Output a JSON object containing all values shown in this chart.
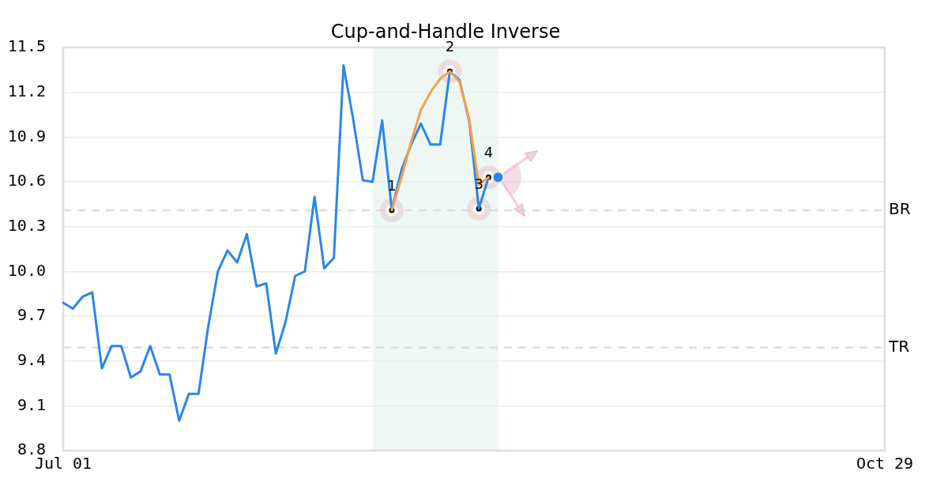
{
  "chart_data": {
    "type": "line",
    "title": "Cup-and-Handle Inverse",
    "categories": [
      "Jul 01",
      null,
      null,
      null,
      null,
      null,
      null,
      null,
      null,
      null,
      null,
      null,
      null,
      null,
      null,
      null,
      null,
      null,
      null,
      null,
      null,
      null,
      null,
      null,
      null,
      null,
      null,
      null,
      null,
      null,
      null,
      null,
      null,
      null,
      null,
      null,
      null,
      null,
      null,
      null,
      null,
      null,
      null,
      null,
      null,
      null,
      null,
      null,
      null,
      null,
      null,
      null,
      null,
      null,
      null,
      null,
      null,
      null,
      null,
      null,
      null,
      null,
      null,
      null,
      null,
      null,
      null,
      null,
      null,
      null,
      null,
      null,
      null,
      null,
      null,
      null,
      null,
      null,
      null,
      null,
      null,
      null,
      null,
      null,
      null,
      "Oct 29"
    ],
    "series": [
      {
        "color": "#2a86e8",
        "values": [
          9.79,
          9.75,
          9.83,
          9.86,
          9.35,
          9.5,
          9.5,
          9.29,
          9.33,
          9.5,
          9.31,
          9.31,
          9.0,
          9.18,
          9.18,
          9.63,
          10.0,
          10.14,
          10.06,
          10.25,
          9.9,
          9.92,
          9.45,
          9.66,
          9.97,
          10.0,
          10.5,
          10.02,
          10.09,
          11.38,
          11.02,
          10.61,
          10.6,
          11.01,
          10.41,
          10.68,
          10.85,
          10.99,
          10.85,
          10.85,
          11.34,
          11.28,
          11.01,
          10.42,
          10.63,
          null,
          null,
          null,
          null,
          null,
          null,
          null,
          null,
          null,
          null,
          null,
          null,
          null,
          null,
          null,
          null,
          null,
          null,
          null,
          null,
          null,
          null,
          null,
          null,
          null,
          null,
          null,
          null,
          null,
          null,
          null,
          null,
          null,
          null,
          null,
          null,
          null,
          null,
          null,
          null,
          null
        ]
      },
      {
        "color": "#f7a049",
        "values": [
          null,
          null,
          null,
          null,
          null,
          null,
          null,
          null,
          null,
          null,
          null,
          null,
          null,
          null,
          null,
          null,
          null,
          null,
          null,
          null,
          null,
          null,
          null,
          null,
          null,
          null,
          null,
          null,
          null,
          null,
          null,
          null,
          null,
          null,
          10.41,
          10.63,
          10.87,
          11.08,
          11.2,
          11.29,
          11.34,
          11.27,
          11.02,
          10.58,
          10.63,
          null,
          null,
          null,
          null,
          null,
          null,
          null,
          null,
          null,
          null,
          null,
          null,
          null,
          null,
          null,
          null,
          null,
          null,
          null,
          null,
          null,
          null,
          null,
          null,
          null,
          null,
          null,
          null,
          null,
          null,
          null,
          null,
          null,
          null,
          null,
          null,
          null,
          null,
          null,
          null,
          null
        ]
      },
      {
        "type": "scatter",
        "name": "1",
        "color": "#000000",
        "marker": "circle",
        "values": [
          null,
          null,
          null,
          null,
          null,
          null,
          null,
          null,
          null,
          null,
          null,
          null,
          null,
          null,
          null,
          null,
          null,
          null,
          null,
          null,
          null,
          null,
          null,
          null,
          null,
          null,
          null,
          null,
          null,
          null,
          null,
          null,
          null,
          null,
          10.41,
          null,
          null,
          null,
          null,
          null,
          null,
          null,
          null,
          null,
          null,
          null,
          null,
          null,
          null,
          null,
          null,
          null,
          null,
          null,
          null,
          null,
          null,
          null,
          null,
          null,
          null,
          null,
          null,
          null,
          null,
          null,
          null,
          null,
          null,
          null,
          null,
          null,
          null,
          null,
          null,
          null,
          null,
          null,
          null,
          null,
          null,
          null,
          null,
          null,
          null,
          null
        ]
      },
      {
        "type": "scatter",
        "name": "2",
        "color": "#000000",
        "marker": "circle",
        "values": [
          null,
          null,
          null,
          null,
          null,
          null,
          null,
          null,
          null,
          null,
          null,
          null,
          null,
          null,
          null,
          null,
          null,
          null,
          null,
          null,
          null,
          null,
          null,
          null,
          null,
          null,
          null,
          null,
          null,
          null,
          null,
          null,
          null,
          null,
          null,
          null,
          null,
          null,
          null,
          null,
          11.34,
          null,
          null,
          null,
          null,
          null,
          null,
          null,
          null,
          null,
          null,
          null,
          null,
          null,
          null,
          null,
          null,
          null,
          null,
          null,
          null,
          null,
          null,
          null,
          null,
          null,
          null,
          null,
          null,
          null,
          null,
          null,
          null,
          null,
          null,
          null,
          null,
          null,
          null,
          null,
          null,
          null,
          null,
          null,
          null,
          null
        ]
      },
      {
        "type": "scatter",
        "name": "3",
        "color": "#000000",
        "marker": "circle",
        "values": [
          null,
          null,
          null,
          null,
          null,
          null,
          null,
          null,
          null,
          null,
          null,
          null,
          null,
          null,
          null,
          null,
          null,
          null,
          null,
          null,
          null,
          null,
          null,
          null,
          null,
          null,
          null,
          null,
          null,
          null,
          null,
          null,
          null,
          null,
          null,
          null,
          null,
          null,
          null,
          null,
          null,
          null,
          null,
          10.42,
          null,
          null,
          null,
          null,
          null,
          null,
          null,
          null,
          null,
          null,
          null,
          null,
          null,
          null,
          null,
          null,
          null,
          null,
          null,
          null,
          null,
          null,
          null,
          null,
          null,
          null,
          null,
          null,
          null,
          null,
          null,
          null,
          null,
          null,
          null,
          null,
          null,
          null,
          null,
          null,
          null,
          null
        ]
      },
      {
        "type": "scatter",
        "name": "4",
        "color": "#000000",
        "marker": "circle",
        "values": [
          null,
          null,
          null,
          null,
          null,
          null,
          null,
          null,
          null,
          null,
          null,
          null,
          null,
          null,
          null,
          null,
          null,
          null,
          null,
          null,
          null,
          null,
          null,
          null,
          null,
          null,
          null,
          null,
          null,
          null,
          null,
          null,
          null,
          null,
          null,
          null,
          null,
          null,
          null,
          null,
          null,
          null,
          null,
          null,
          10.63,
          null,
          null,
          null,
          null,
          null,
          null,
          null,
          null,
          null,
          null,
          null,
          null,
          null,
          null,
          null,
          null,
          null,
          null,
          null,
          null,
          null,
          null,
          null,
          null,
          null,
          null,
          null,
          null,
          null,
          null,
          null,
          null,
          null,
          null,
          null,
          null,
          null,
          null,
          null,
          null,
          null
        ]
      },
      {
        "type": "scatter",
        "color": "#2a86e8",
        "marker": "circle",
        "values": [
          null,
          null,
          null,
          null,
          null,
          null,
          null,
          null,
          null,
          null,
          null,
          null,
          null,
          null,
          null,
          null,
          null,
          null,
          null,
          null,
          null,
          null,
          null,
          null,
          null,
          null,
          null,
          null,
          null,
          null,
          null,
          null,
          null,
          null,
          null,
          null,
          null,
          null,
          null,
          null,
          null,
          null,
          null,
          null,
          null,
          10.63,
          null,
          null,
          null,
          null,
          null,
          null,
          null,
          null,
          null,
          null,
          null,
          null,
          null,
          null,
          null,
          null,
          null,
          null,
          null,
          null,
          null,
          null,
          null,
          null,
          null,
          null,
          null,
          null,
          null,
          null,
          null,
          null,
          null,
          null,
          null,
          null,
          null,
          null,
          null,
          null
        ]
      }
    ],
    "ylim": [
      8.8,
      11.5
    ],
    "yticks": [
      8.8,
      9.1,
      9.4,
      9.7,
      {
        "value": 10,
        "label": "10.0"
      },
      10.3,
      10.6,
      10.9,
      11.2,
      11.5
    ],
    "ref_lines": [
      {
        "axis": "y",
        "value": 10.41,
        "label": "BR",
        "color": "#dddddd",
        "line_style": "dashed"
      },
      {
        "axis": "y",
        "value": 9.49,
        "label": "TR",
        "color": "#dddddd",
        "line_style": "dashed"
      }
    ],
    "grid": "y",
    "legend": false
  }
}
